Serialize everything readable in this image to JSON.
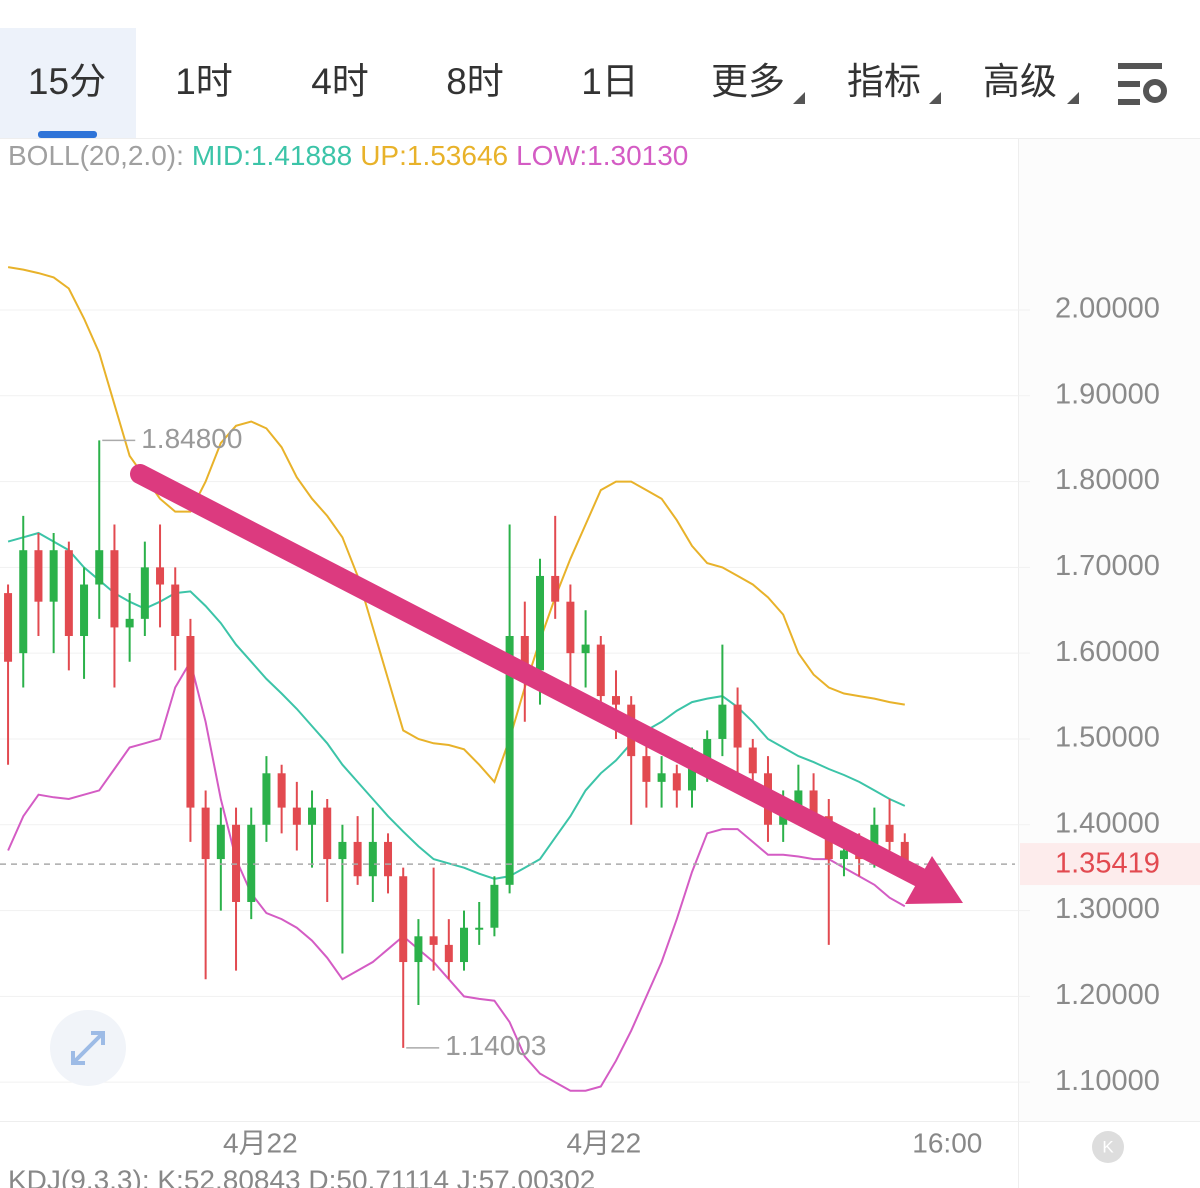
{
  "tabs": [
    "15分",
    "1时",
    "4时",
    "8时",
    "1日",
    "更多",
    "指标",
    "高级"
  ],
  "chart_data": {
    "type": "candlestick",
    "legend_prefix": "BOLL(20,2.0):",
    "lines": [
      {
        "label": "MID:1.41888",
        "color": "#3cc4a8",
        "values": [
          1.73,
          1.735,
          1.74,
          1.73,
          1.72,
          1.7,
          1.685,
          1.67,
          1.66,
          1.652,
          1.66,
          1.67,
          1.672,
          1.655,
          1.635,
          1.61,
          1.59,
          1.57,
          1.553,
          1.535,
          1.515,
          1.495,
          1.47,
          1.45,
          1.43,
          1.41,
          1.392,
          1.375,
          1.36,
          1.355,
          1.35,
          1.343,
          1.337,
          1.34,
          1.35,
          1.36,
          1.385,
          1.41,
          1.44,
          1.46,
          1.475,
          1.495,
          1.51,
          1.52,
          1.533,
          1.543,
          1.547,
          1.55,
          1.537,
          1.52,
          1.5,
          1.49,
          1.48,
          1.473,
          1.465,
          1.458,
          1.45,
          1.44,
          1.43,
          1.422
        ]
      },
      {
        "label": "UP:1.53646",
        "color": "#e8b22a",
        "values": [
          2.05,
          2.047,
          2.043,
          2.038,
          2.025,
          1.99,
          1.95,
          1.89,
          1.83,
          1.805,
          1.78,
          1.765,
          1.765,
          1.8,
          1.845,
          1.865,
          1.87,
          1.862,
          1.84,
          1.805,
          1.78,
          1.76,
          1.735,
          1.69,
          1.63,
          1.57,
          1.51,
          1.5,
          1.495,
          1.493,
          1.488,
          1.47,
          1.45,
          1.5,
          1.56,
          1.615,
          1.665,
          1.71,
          1.75,
          1.79,
          1.8,
          1.8,
          1.79,
          1.78,
          1.755,
          1.725,
          1.705,
          1.7,
          1.69,
          1.68,
          1.665,
          1.645,
          1.6,
          1.575,
          1.56,
          1.553,
          1.55,
          1.547,
          1.543,
          1.54
        ]
      },
      {
        "label": "LOW:1.30130",
        "color": "#d45cc4",
        "values": [
          1.37,
          1.41,
          1.435,
          1.432,
          1.43,
          1.435,
          1.44,
          1.465,
          1.49,
          1.495,
          1.5,
          1.56,
          1.59,
          1.52,
          1.43,
          1.36,
          1.32,
          1.297,
          1.29,
          1.28,
          1.265,
          1.245,
          1.22,
          1.23,
          1.24,
          1.255,
          1.27,
          1.255,
          1.24,
          1.22,
          1.2,
          1.197,
          1.195,
          1.17,
          1.13,
          1.11,
          1.1,
          1.09,
          1.09,
          1.095,
          1.125,
          1.16,
          1.2,
          1.24,
          1.29,
          1.345,
          1.39,
          1.395,
          1.395,
          1.38,
          1.365,
          1.365,
          1.363,
          1.36,
          1.36,
          1.35,
          1.34,
          1.33,
          1.315,
          1.305
        ]
      }
    ],
    "open": [
      1.67,
      1.6,
      1.72,
      1.66,
      1.72,
      1.62,
      1.68,
      1.72,
      1.63,
      1.64,
      1.7,
      1.68,
      1.62,
      1.42,
      1.36,
      1.4,
      1.31,
      1.4,
      1.46,
      1.42,
      1.4,
      1.42,
      1.36,
      1.38,
      1.34,
      1.38,
      1.34,
      1.24,
      1.27,
      1.26,
      1.24,
      1.28,
      1.28,
      1.33,
      1.62,
      1.58,
      1.69,
      1.66,
      1.6,
      1.61,
      1.55,
      1.54,
      1.48,
      1.45,
      1.46,
      1.44,
      1.47,
      1.5,
      1.54,
      1.49,
      1.46,
      1.4,
      1.42,
      1.44,
      1.41,
      1.36,
      1.37,
      1.36,
      1.4,
      1.38
    ],
    "high": [
      1.68,
      1.76,
      1.74,
      1.74,
      1.73,
      1.7,
      1.848,
      1.75,
      1.67,
      1.73,
      1.75,
      1.7,
      1.64,
      1.44,
      1.42,
      1.42,
      1.42,
      1.48,
      1.47,
      1.45,
      1.44,
      1.43,
      1.4,
      1.41,
      1.42,
      1.39,
      1.35,
      1.29,
      1.35,
      1.29,
      1.3,
      1.31,
      1.34,
      1.75,
      1.66,
      1.71,
      1.76,
      1.68,
      1.65,
      1.62,
      1.58,
      1.55,
      1.5,
      1.48,
      1.47,
      1.49,
      1.51,
      1.61,
      1.56,
      1.5,
      1.48,
      1.44,
      1.47,
      1.46,
      1.43,
      1.39,
      1.39,
      1.42,
      1.43,
      1.39
    ],
    "low": [
      1.47,
      1.56,
      1.62,
      1.6,
      1.58,
      1.57,
      1.64,
      1.56,
      1.59,
      1.62,
      1.63,
      1.58,
      1.38,
      1.22,
      1.3,
      1.23,
      1.29,
      1.38,
      1.39,
      1.37,
      1.35,
      1.31,
      1.25,
      1.33,
      1.31,
      1.32,
      1.14003,
      1.19,
      1.23,
      1.22,
      1.23,
      1.26,
      1.27,
      1.32,
      1.52,
      1.54,
      1.64,
      1.56,
      1.56,
      1.53,
      1.5,
      1.4,
      1.42,
      1.42,
      1.42,
      1.42,
      1.45,
      1.48,
      1.46,
      1.44,
      1.38,
      1.38,
      1.4,
      1.4,
      1.26,
      1.34,
      1.34,
      1.35,
      1.37,
      1.34
    ],
    "close": [
      1.59,
      1.72,
      1.66,
      1.72,
      1.62,
      1.68,
      1.72,
      1.63,
      1.64,
      1.7,
      1.68,
      1.62,
      1.42,
      1.36,
      1.4,
      1.31,
      1.4,
      1.46,
      1.42,
      1.4,
      1.42,
      1.36,
      1.38,
      1.34,
      1.38,
      1.34,
      1.24,
      1.27,
      1.26,
      1.24,
      1.28,
      1.28,
      1.33,
      1.62,
      1.58,
      1.69,
      1.66,
      1.6,
      1.61,
      1.55,
      1.54,
      1.48,
      1.45,
      1.46,
      1.44,
      1.47,
      1.5,
      1.54,
      1.49,
      1.46,
      1.4,
      1.42,
      1.44,
      1.41,
      1.36,
      1.37,
      1.36,
      1.4,
      1.38,
      1.354
    ],
    "up_color": "#2bb14a",
    "down_color": "#e24a50",
    "ylim": [
      1.0559,
      2.1981
    ],
    "yticks": [
      {
        "value": 1.1,
        "label": "1.10000"
      },
      {
        "value": 1.2,
        "label": "1.20000"
      },
      {
        "value": 1.3,
        "label": "1.30000"
      },
      {
        "value": 1.4,
        "label": "1.40000"
      },
      {
        "value": 1.5,
        "label": "1.50000"
      },
      {
        "value": 1.6,
        "label": "1.60000"
      },
      {
        "value": 1.7,
        "label": "1.70000"
      },
      {
        "value": 1.8,
        "label": "1.80000"
      },
      {
        "value": 1.9,
        "label": "1.90000"
      },
      {
        "value": 2,
        "label": "2.00000"
      }
    ],
    "xlim": [
      -0.53,
      66.45
    ],
    "xticks": [
      {
        "value": 16.6,
        "label": "4月22"
      },
      {
        "value": 39.2,
        "label": "4月22"
      },
      {
        "value": 61.8,
        "label": "16:00"
      }
    ],
    "grid": true,
    "max_label": {
      "value": 1.848,
      "label": "1.84800"
    },
    "min_label": {
      "value": 1.14003,
      "label": "1.14003"
    },
    "last_price": {
      "value": 1.35419,
      "label": "1.35419"
    },
    "footer": "KDJ(9,3,3): K:52.80843 D:50.71114 J:57.00302"
  }
}
